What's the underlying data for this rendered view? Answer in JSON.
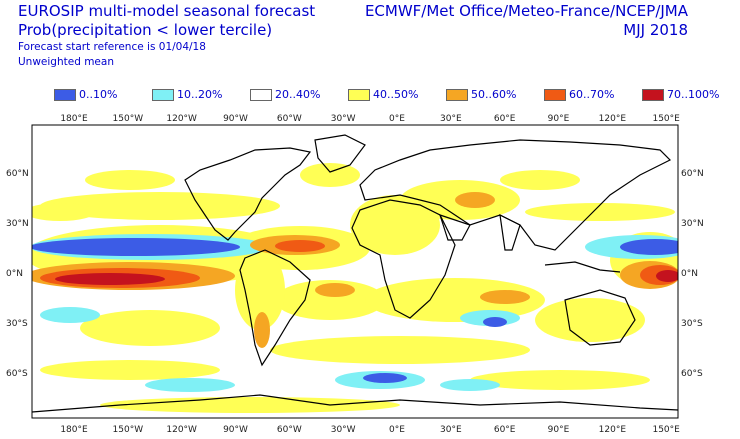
{
  "header": {
    "title": "EUROSIP multi-model seasonal forecast",
    "subtitle": "Prob(precipitation < lower tercile)",
    "start_ref": "Forecast start reference is 01/04/18",
    "mean_type": "Unweighted mean",
    "centres": "ECMWF/Met Office/Meteo-France/NCEP/JMA",
    "period": "MJJ 2018"
  },
  "legend": [
    {
      "label": "0..10%",
      "color": "#3c5ce6"
    },
    {
      "label": "10..20%",
      "color": "#7ff0f5"
    },
    {
      "label": "20..40%",
      "color": "#ffffff"
    },
    {
      "label": "40..50%",
      "color": "#ffff55"
    },
    {
      "label": "50..60%",
      "color": "#f5a623"
    },
    {
      "label": "60..70%",
      "color": "#f05a14"
    },
    {
      "label": "70..100%",
      "color": "#c4121e"
    }
  ],
  "axes": {
    "lon_labels": [
      "180°E",
      "150°W",
      "120°W",
      "90°W",
      "60°W",
      "30°W",
      "0°E",
      "30°E",
      "60°E",
      "90°E",
      "120°E",
      "150°E"
    ],
    "lon_values": [
      180,
      -150,
      -120,
      -90,
      -60,
      -30,
      0,
      30,
      60,
      90,
      120,
      150
    ],
    "lat_labels_left": [
      "60°N",
      "30°N",
      "0°N",
      "30°S",
      "60°S"
    ],
    "lat_labels_right": [
      "60°N",
      "30°N",
      "0°N",
      "30°S",
      "60°S"
    ],
    "lat_values": [
      60,
      30,
      0,
      -30,
      -60
    ]
  }
}
